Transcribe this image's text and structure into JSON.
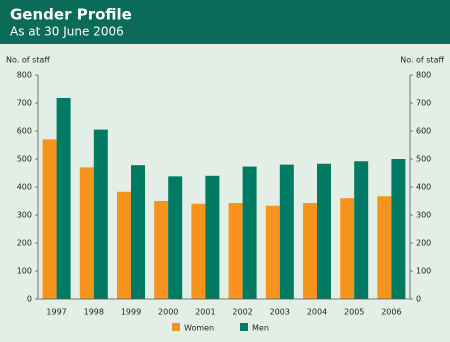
{
  "chart_data": {
    "type": "bar",
    "title": "Gender Profile",
    "subtitle": "As at 30 June 2006",
    "y_label": "No. of staff",
    "y2_label": "No. of staff",
    "categories": [
      "1997",
      "1998",
      "1999",
      "2000",
      "2001",
      "2002",
      "2003",
      "2004",
      "2005",
      "2006"
    ],
    "series": [
      {
        "name": "Women",
        "color": "#f7941d",
        "values": [
          570,
          470,
          383,
          350,
          340,
          343,
          333,
          343,
          360,
          367
        ]
      },
      {
        "name": "Men",
        "color": "#007a63",
        "values": [
          718,
          605,
          478,
          438,
          440,
          473,
          480,
          483,
          492,
          500
        ]
      }
    ],
    "ylim": [
      0,
      800
    ],
    "yticks": [
      0,
      100,
      200,
      300,
      400,
      500,
      600,
      700,
      800
    ],
    "y2lim": [
      0,
      800
    ],
    "y2ticks": [
      0,
      100,
      200,
      300,
      400,
      500,
      600,
      700,
      800
    ]
  }
}
